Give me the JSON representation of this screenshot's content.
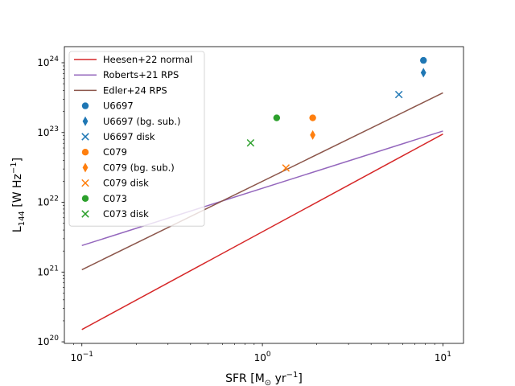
{
  "chart_data": {
    "type": "scatter",
    "xscale": "log",
    "yscale": "log",
    "xlim": [
      0.08,
      13
    ],
    "ylim": [
      9.5e+19,
      1.7e+24
    ],
    "xlabel_main": "SFR [M",
    "xlabel_sub": "⊙",
    "xlabel_unit": " yr",
    "xlabel_sup": "−1",
    "xlabel_end": "]",
    "ylabel_main": "L",
    "ylabel_sub": "144",
    "ylabel_unit": " [W Hz",
    "ylabel_sup": "−1",
    "ylabel_end": "]",
    "xticks": [
      {
        "value": 0.1,
        "base": "10",
        "exp": "−1"
      },
      {
        "value": 1,
        "base": "10",
        "exp": "0"
      },
      {
        "value": 10,
        "base": "10",
        "exp": "1"
      }
    ],
    "yticks": [
      {
        "value": 1e+20,
        "base": "10",
        "exp": "20"
      },
      {
        "value": 1e+21,
        "base": "10",
        "exp": "21"
      },
      {
        "value": 1e+22,
        "base": "10",
        "exp": "22"
      },
      {
        "value": 1e+23,
        "base": "10",
        "exp": "23"
      },
      {
        "value": 1e+24,
        "base": "10",
        "exp": "24"
      }
    ],
    "lines": [
      {
        "name": "Heesen+22 normal",
        "color": "#d62728",
        "x": [
          0.1,
          10
        ],
        "y": [
          1.5e+20,
          9.5e+22
        ]
      },
      {
        "name": "Roberts+21 RPS",
        "color": "#9467bd",
        "x": [
          0.1,
          10
        ],
        "y": [
          2.4e+21,
          1.05e+23
        ]
      },
      {
        "name": "Edler+24 RPS",
        "color": "#8c564b",
        "x": [
          0.1,
          10
        ],
        "y": [
          1.08e+21,
          3.7e+23
        ]
      }
    ],
    "points": [
      {
        "name": "U6697",
        "color": "#1f77b4",
        "marker": "circle",
        "x": 7.8,
        "y": 1.08e+24
      },
      {
        "name": "U6697 (bg. sub.)",
        "color": "#1f77b4",
        "marker": "thin_diamond",
        "x": 7.8,
        "y": 7.2e+23
      },
      {
        "name": "U6697 disk",
        "color": "#1f77b4",
        "marker": "x",
        "x": 5.7,
        "y": 3.5e+23
      },
      {
        "name": "C079",
        "color": "#ff7f0e",
        "marker": "circle",
        "x": 1.9,
        "y": 1.62e+23
      },
      {
        "name": "C079 (bg. sub.)",
        "color": "#ff7f0e",
        "marker": "thin_diamond",
        "x": 1.9,
        "y": 9.2e+22
      },
      {
        "name": "C079 disk",
        "color": "#ff7f0e",
        "marker": "x",
        "x": 1.35,
        "y": 3.1e+22
      },
      {
        "name": "C073",
        "color": "#2ca02c",
        "marker": "circle",
        "x": 1.2,
        "y": 1.62e+23
      },
      {
        "name": "C073 disk",
        "color": "#2ca02c",
        "marker": "x",
        "x": 0.86,
        "y": 7.1e+22
      }
    ],
    "legend_position": "top-left",
    "grid": false
  }
}
